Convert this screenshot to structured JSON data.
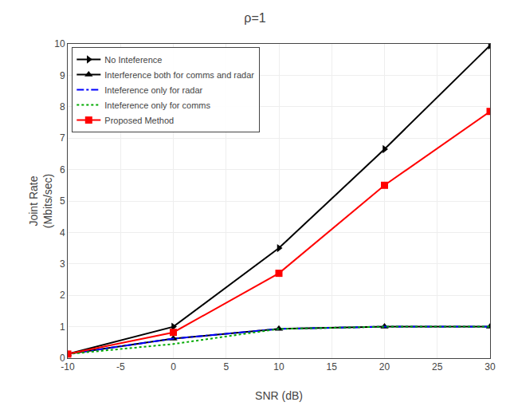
{
  "chart_data": {
    "type": "line",
    "title": "ρ=1",
    "x_label": "SNR (dB)",
    "y_label": "Joint Rate\n(Mbits/sec)",
    "x": [
      -10,
      0,
      10,
      20,
      30
    ],
    "xlim": [
      -10,
      30
    ],
    "ylim": [
      0,
      10
    ],
    "xticks": [
      -10,
      -5,
      0,
      5,
      10,
      15,
      20,
      25,
      30
    ],
    "yticks": [
      0,
      1,
      2,
      3,
      4,
      5,
      6,
      7,
      8,
      9,
      10
    ],
    "grid": true,
    "legend": "upper left",
    "series": [
      {
        "name": "No Inteference",
        "color": "#000000",
        "line_style": "solid",
        "marker": "triangle-right",
        "values": [
          0.13,
          1.0,
          3.5,
          6.65,
          9.95
        ]
      },
      {
        "name": "Interference both for comms and radar",
        "color": "#000000",
        "line_style": "solid",
        "marker": "triangle-up",
        "values": [
          0.13,
          0.62,
          0.93,
          1.0,
          1.0
        ]
      },
      {
        "name": "Inteference only for radar",
        "color": "#0000FF",
        "line_style": "dashdot",
        "values": [
          0.13,
          0.62,
          0.93,
          1.0,
          1.0
        ]
      },
      {
        "name": "Inteference only for comms",
        "color": "#00AA00",
        "line_style": "dotted",
        "values": [
          0.13,
          0.45,
          0.93,
          1.0,
          1.0
        ]
      },
      {
        "name": "Proposed Method",
        "color": "#FF0000",
        "line_style": "solid",
        "marker": "square",
        "values": [
          0.13,
          0.82,
          2.7,
          5.5,
          7.85
        ]
      }
    ]
  }
}
